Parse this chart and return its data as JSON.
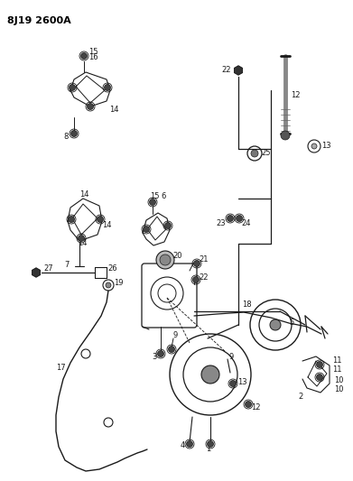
{
  "title": "8J19 2600A",
  "bg_color": "#ffffff",
  "line_color": "#1a1a1a",
  "fig_w": 3.91,
  "fig_h": 5.33,
  "dpi": 100
}
